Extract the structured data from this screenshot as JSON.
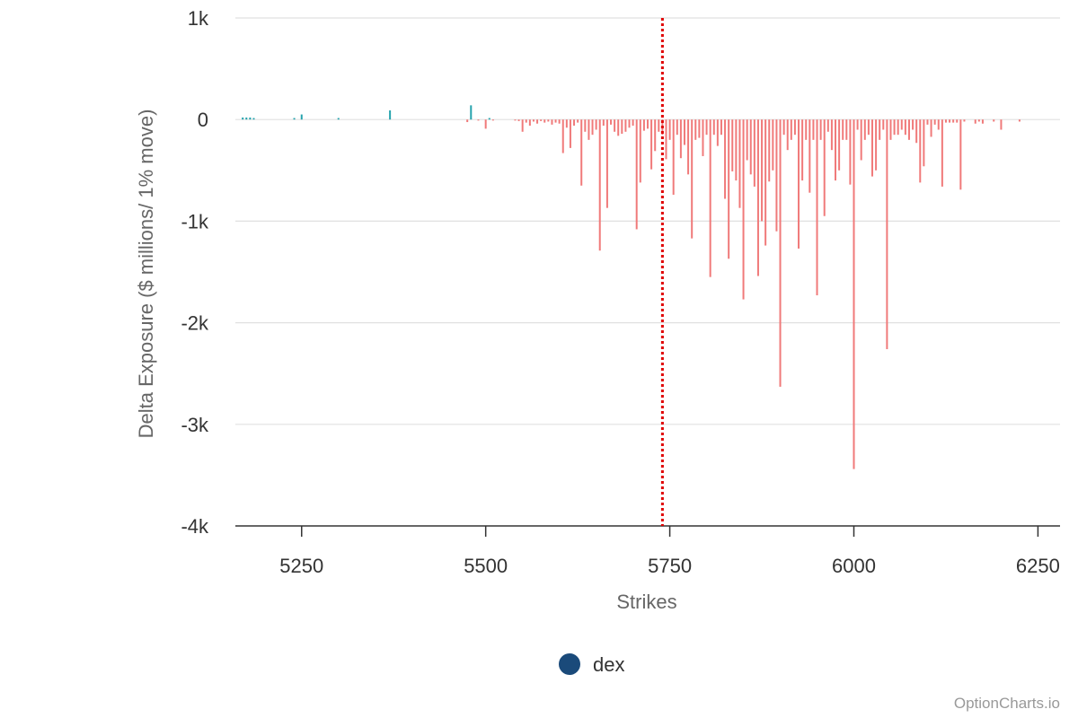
{
  "chart_data": {
    "type": "bar",
    "title": "",
    "xlabel": "Strikes",
    "ylabel": "Delta Exposure ($ millions/ 1% move)",
    "xlim": [
      5160,
      6280
    ],
    "ylim": [
      -4000,
      1000
    ],
    "x_ticks": [
      5250,
      5500,
      5750,
      6000,
      6250
    ],
    "y_ticks": [
      1000,
      0,
      -1000,
      -2000,
      -3000,
      -4000
    ],
    "y_tick_labels": [
      "1k",
      "0",
      "-1k",
      "-2k",
      "-3k",
      "-4k"
    ],
    "grid": true,
    "legend_position": "bottom-center",
    "spot_line": 5740,
    "series": [
      {
        "name": "dex",
        "legend_color": "#1a4a7a",
        "positive_color": "#26a3ad",
        "negative_color": "#f07a7a",
        "points": [
          [
            5170,
            20
          ],
          [
            5175,
            20
          ],
          [
            5180,
            20
          ],
          [
            5185,
            15
          ],
          [
            5240,
            15
          ],
          [
            5250,
            50
          ],
          [
            5300,
            15
          ],
          [
            5370,
            90
          ],
          [
            5475,
            -25
          ],
          [
            5480,
            140
          ],
          [
            5490,
            -10
          ],
          [
            5500,
            -90
          ],
          [
            5505,
            15
          ],
          [
            5510,
            -10
          ],
          [
            5540,
            -10
          ],
          [
            5545,
            -15
          ],
          [
            5550,
            -120
          ],
          [
            5555,
            -30
          ],
          [
            5560,
            -60
          ],
          [
            5565,
            -20
          ],
          [
            5570,
            -40
          ],
          [
            5575,
            -15
          ],
          [
            5580,
            -30
          ],
          [
            5585,
            -20
          ],
          [
            5590,
            -50
          ],
          [
            5595,
            -30
          ],
          [
            5600,
            -40
          ],
          [
            5605,
            -330
          ],
          [
            5610,
            -80
          ],
          [
            5615,
            -280
          ],
          [
            5620,
            -60
          ],
          [
            5625,
            -30
          ],
          [
            5630,
            -650
          ],
          [
            5635,
            -120
          ],
          [
            5640,
            -200
          ],
          [
            5645,
            -150
          ],
          [
            5650,
            -100
          ],
          [
            5655,
            -1290
          ],
          [
            5660,
            -60
          ],
          [
            5665,
            -870
          ],
          [
            5670,
            -50
          ],
          [
            5675,
            -120
          ],
          [
            5680,
            -160
          ],
          [
            5685,
            -140
          ],
          [
            5690,
            -120
          ],
          [
            5695,
            -80
          ],
          [
            5700,
            -60
          ],
          [
            5705,
            -1080
          ],
          [
            5710,
            -620
          ],
          [
            5715,
            -110
          ],
          [
            5720,
            -90
          ],
          [
            5725,
            -490
          ],
          [
            5730,
            -310
          ],
          [
            5735,
            -120
          ],
          [
            5740,
            -150
          ],
          [
            5745,
            -390
          ],
          [
            5750,
            -200
          ],
          [
            5755,
            -740
          ],
          [
            5760,
            -150
          ],
          [
            5765,
            -380
          ],
          [
            5770,
            -250
          ],
          [
            5775,
            -540
          ],
          [
            5780,
            -1170
          ],
          [
            5785,
            -200
          ],
          [
            5790,
            -180
          ],
          [
            5795,
            -360
          ],
          [
            5800,
            -150
          ],
          [
            5805,
            -1550
          ],
          [
            5810,
            -150
          ],
          [
            5815,
            -260
          ],
          [
            5820,
            -150
          ],
          [
            5825,
            -780
          ],
          [
            5830,
            -1370
          ],
          [
            5835,
            -510
          ],
          [
            5840,
            -600
          ],
          [
            5845,
            -870
          ],
          [
            5850,
            -1770
          ],
          [
            5855,
            -400
          ],
          [
            5860,
            -540
          ],
          [
            5865,
            -660
          ],
          [
            5870,
            -1540
          ],
          [
            5875,
            -1000
          ],
          [
            5880,
            -1240
          ],
          [
            5885,
            -610
          ],
          [
            5890,
            -500
          ],
          [
            5895,
            -1100
          ],
          [
            5900,
            -2630
          ],
          [
            5905,
            -150
          ],
          [
            5910,
            -300
          ],
          [
            5915,
            -200
          ],
          [
            5920,
            -150
          ],
          [
            5925,
            -1270
          ],
          [
            5930,
            -600
          ],
          [
            5935,
            -200
          ],
          [
            5940,
            -720
          ],
          [
            5945,
            -200
          ],
          [
            5950,
            -1730
          ],
          [
            5955,
            -200
          ],
          [
            5960,
            -950
          ],
          [
            5965,
            -120
          ],
          [
            5970,
            -300
          ],
          [
            5975,
            -600
          ],
          [
            5980,
            -500
          ],
          [
            5985,
            -200
          ],
          [
            5990,
            -200
          ],
          [
            5995,
            -640
          ],
          [
            6000,
            -3440
          ],
          [
            6005,
            -100
          ],
          [
            6010,
            -400
          ],
          [
            6015,
            -200
          ],
          [
            6020,
            -150
          ],
          [
            6025,
            -560
          ],
          [
            6030,
            -500
          ],
          [
            6035,
            -200
          ],
          [
            6040,
            -100
          ],
          [
            6045,
            -2260
          ],
          [
            6050,
            -200
          ],
          [
            6055,
            -150
          ],
          [
            6060,
            -150
          ],
          [
            6065,
            -100
          ],
          [
            6070,
            -150
          ],
          [
            6075,
            -200
          ],
          [
            6080,
            -100
          ],
          [
            6085,
            -230
          ],
          [
            6090,
            -620
          ],
          [
            6095,
            -460
          ],
          [
            6100,
            -50
          ],
          [
            6105,
            -170
          ],
          [
            6110,
            -50
          ],
          [
            6115,
            -100
          ],
          [
            6120,
            -660
          ],
          [
            6125,
            -30
          ],
          [
            6130,
            -30
          ],
          [
            6135,
            -30
          ],
          [
            6140,
            -30
          ],
          [
            6145,
            -690
          ],
          [
            6150,
            -20
          ],
          [
            6165,
            -40
          ],
          [
            6170,
            -20
          ],
          [
            6175,
            -40
          ],
          [
            6190,
            -20
          ],
          [
            6200,
            -100
          ],
          [
            6225,
            -20
          ]
        ]
      }
    ]
  },
  "credit": "OptionCharts.io"
}
